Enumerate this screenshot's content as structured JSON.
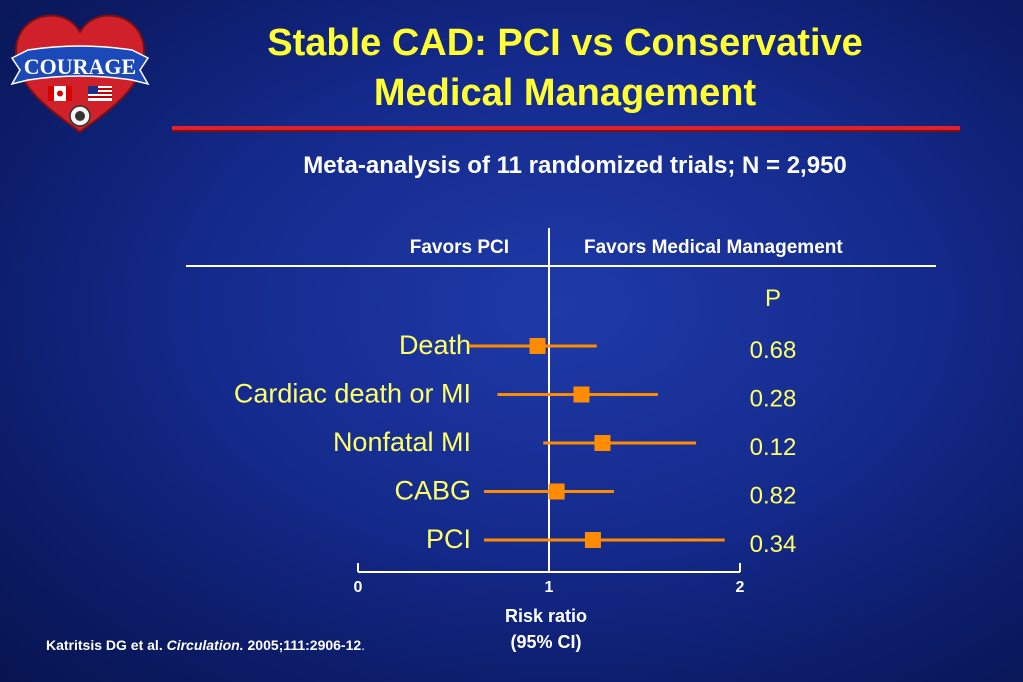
{
  "slide": {
    "title_line1": "Stable CAD: PCI vs Conservative",
    "title_line2": "Medical Management",
    "subtitle": "Meta-analysis of 11 randomized trials; N = 2,950",
    "footnote_authors": "Katritsis DG et al.",
    "footnote_journal": "Circulation.",
    "footnote_ref": "2005;111:2906-12",
    "footnote_end": ".",
    "logo_text": "COURAGE"
  },
  "chart_data": {
    "type": "forest",
    "header_left": "Favors PCI",
    "header_right": "Favors Medical Management",
    "p_header": "P",
    "xlabel_line1": "Risk ratio",
    "xlabel_line2": "(95% CI)",
    "xlim": [
      0,
      2
    ],
    "xticks": [
      "0",
      "1",
      "2"
    ],
    "reference_line": 1,
    "rows": [
      {
        "label": "Death",
        "rr": 0.94,
        "lo": 0.58,
        "hi": 1.25,
        "p": "0.68"
      },
      {
        "label": "Cardiac death or MI",
        "rr": 1.17,
        "lo": 0.73,
        "hi": 1.57,
        "p": "0.28"
      },
      {
        "label": "Nonfatal MI",
        "rr": 1.28,
        "lo": 0.97,
        "hi": 1.77,
        "p": "0.12"
      },
      {
        "label": "CABG",
        "rr": 1.04,
        "lo": 0.66,
        "hi": 1.34,
        "p": "0.82"
      },
      {
        "label": "PCI",
        "rr": 1.23,
        "lo": 0.66,
        "hi": 1.92,
        "p": "0.34"
      }
    ],
    "colors": {
      "marker": "#ff8c00",
      "row_label": "#ffff66",
      "p_value": "#ffff66",
      "axis": "#ffffff"
    }
  }
}
